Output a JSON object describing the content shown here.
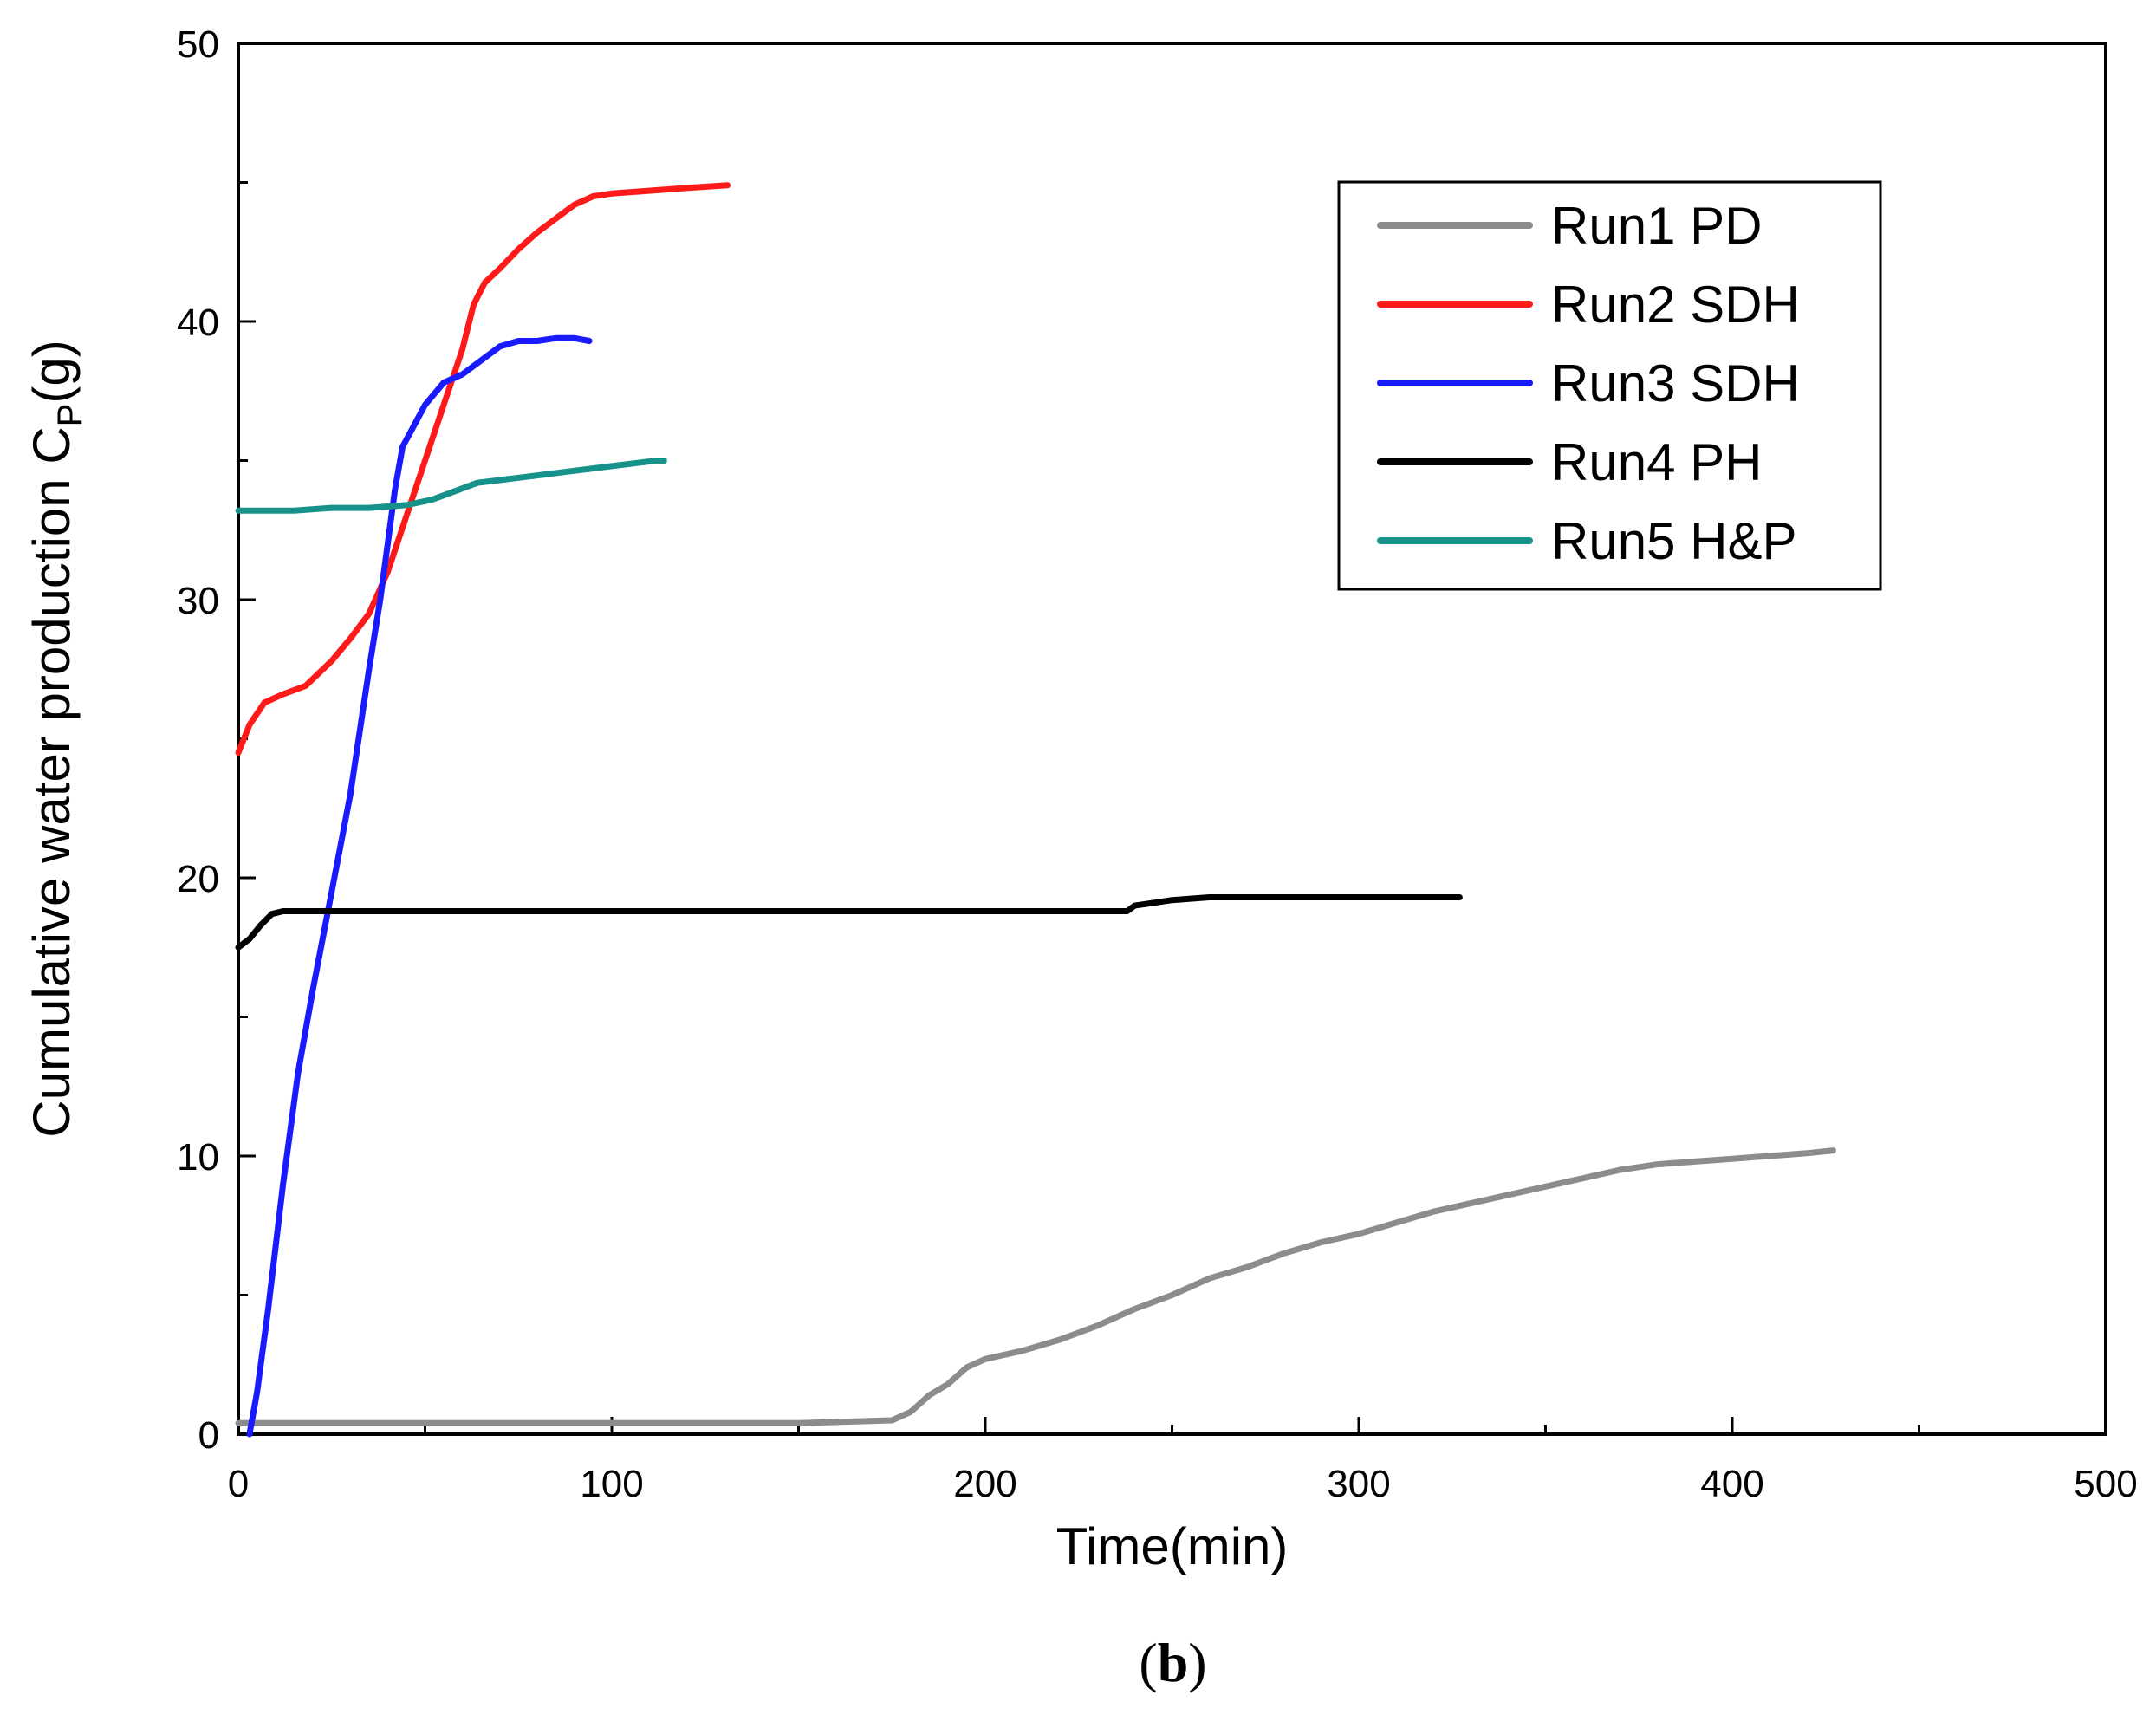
{
  "chart_data": {
    "type": "line",
    "xlabel": "Time(min)",
    "ylabel_main": "Cumulative water production C",
    "ylabel_sub": "P",
    "ylabel_unit": "(g)",
    "xlim": [
      0,
      500
    ],
    "ylim": [
      0,
      50
    ],
    "x_ticks": [
      0,
      100,
      200,
      300,
      400,
      500
    ],
    "y_ticks": [
      0,
      10,
      20,
      30,
      40,
      50
    ],
    "x_tick_labels": [
      "0",
      "100",
      "200",
      "300",
      "400",
      "500"
    ],
    "y_tick_labels": [
      "0",
      "10",
      "20",
      "30",
      "40",
      "50"
    ],
    "grid": false,
    "legend_position": "top-right",
    "caption": {
      "open": "(",
      "letter": "b",
      "close": ")"
    },
    "series": [
      {
        "name": "Run1 PD",
        "color": "#8c8c8c",
        "x": [
          0,
          50,
          100,
          150,
          175,
          180,
          185,
          190,
          195,
          200,
          210,
          220,
          230,
          240,
          250,
          260,
          270,
          280,
          290,
          300,
          310,
          320,
          330,
          340,
          350,
          360,
          370,
          380,
          390,
          400,
          410,
          420,
          427
        ],
        "y": [
          0.4,
          0.4,
          0.4,
          0.4,
          0.5,
          0.8,
          1.4,
          1.8,
          2.4,
          2.7,
          3.0,
          3.4,
          3.9,
          4.5,
          5.0,
          5.6,
          6.0,
          6.5,
          6.9,
          7.2,
          7.6,
          8.0,
          8.3,
          8.6,
          8.9,
          9.2,
          9.5,
          9.7,
          9.8,
          9.9,
          10.0,
          10.1,
          10.2
        ]
      },
      {
        "name": "Run2 SDH",
        "color": "#ff1a1a",
        "x": [
          0,
          3,
          7,
          12,
          18,
          25,
          30,
          35,
          40,
          45,
          50,
          55,
          60,
          63,
          66,
          70,
          75,
          80,
          85,
          90,
          95,
          100,
          110,
          120,
          131
        ],
        "y": [
          24.5,
          25.5,
          26.3,
          26.6,
          26.9,
          27.8,
          28.6,
          29.5,
          31.0,
          33.0,
          35.0,
          37.0,
          39.0,
          40.6,
          41.4,
          41.9,
          42.6,
          43.2,
          43.7,
          44.2,
          44.5,
          44.6,
          44.7,
          44.8,
          44.9
        ]
      },
      {
        "name": "Run3 SDH",
        "color": "#1a1aff",
        "x": [
          3,
          5,
          8,
          12,
          16,
          20,
          25,
          30,
          35,
          38,
          40,
          42,
          44,
          46,
          50,
          55,
          60,
          65,
          70,
          75,
          80,
          85,
          90,
          94
        ],
        "y": [
          0,
          1.5,
          4.5,
          9.0,
          13.0,
          16.0,
          19.5,
          23.0,
          27.5,
          30.0,
          32.0,
          34.0,
          35.5,
          36.0,
          37.0,
          37.8,
          38.1,
          38.6,
          39.1,
          39.3,
          39.3,
          39.4,
          39.4,
          39.3
        ]
      },
      {
        "name": "Run4 PH",
        "color": "#000000",
        "x": [
          0,
          3,
          6,
          9,
          12,
          20,
          50,
          100,
          150,
          200,
          238,
          240,
          245,
          250,
          260,
          280,
          300,
          327
        ],
        "y": [
          17.5,
          17.8,
          18.3,
          18.7,
          18.8,
          18.8,
          18.8,
          18.8,
          18.8,
          18.8,
          18.8,
          19.0,
          19.1,
          19.2,
          19.3,
          19.3,
          19.3,
          19.3
        ]
      },
      {
        "name": "Run5 H&P",
        "color": "#17928a",
        "x": [
          0,
          15,
          25,
          35,
          45,
          52,
          58,
          64,
          70,
          76,
          82,
          88,
          94,
          100,
          106,
          112,
          114
        ],
        "y": [
          33.2,
          33.2,
          33.3,
          33.3,
          33.4,
          33.6,
          33.9,
          34.2,
          34.3,
          34.4,
          34.5,
          34.6,
          34.7,
          34.8,
          34.9,
          35.0,
          35.0
        ]
      }
    ]
  }
}
